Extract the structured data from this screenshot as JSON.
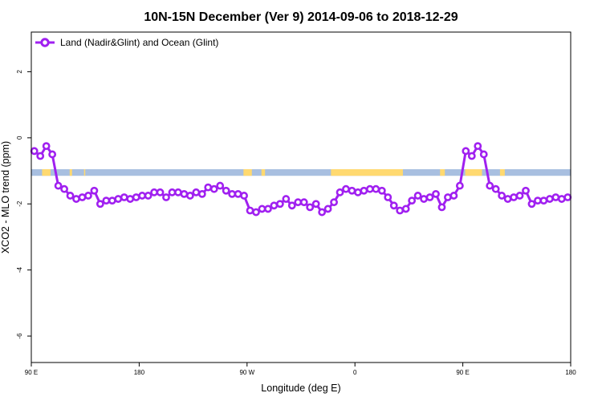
{
  "chart_data": {
    "type": "line",
    "title": "10N-15N December (Ver 9)   2014-09-06 to 2018-12-29",
    "xlabel": "Longitude (deg E)",
    "ylabel": "XCO2 - MLO trend (ppm)",
    "xlim": [
      90,
      540
    ],
    "ylim": [
      -6.8,
      3.2
    ],
    "x_ticks": [
      {
        "value": 90,
        "label": "90 E"
      },
      {
        "value": 180,
        "label": "180"
      },
      {
        "value": 270,
        "label": "90 W"
      },
      {
        "value": 360,
        "label": "0"
      },
      {
        "value": 450,
        "label": "90 E"
      },
      {
        "value": 540,
        "label": "180"
      }
    ],
    "y_ticks": [
      {
        "value": 2,
        "label": "2"
      },
      {
        "value": 0,
        "label": "0"
      },
      {
        "value": -2,
        "label": "-2"
      },
      {
        "value": -4,
        "label": "-4"
      },
      {
        "value": -6,
        "label": "-6"
      }
    ],
    "grid": false,
    "legend_position": "top-left",
    "series": [
      {
        "name": "Land (Nadir&Glint) and Ocean (Glint)",
        "color": "#a020f0",
        "marker": "open-circle",
        "x": [
          92.5,
          97.5,
          102.5,
          107.5,
          112.5,
          117.5,
          122.5,
          127.5,
          132.5,
          137.5,
          142.5,
          147.5,
          152.5,
          157.5,
          162.5,
          167.5,
          172.5,
          177.5,
          182.5,
          187.5,
          192.5,
          197.5,
          202.5,
          207.5,
          212.5,
          217.5,
          222.5,
          227.5,
          232.5,
          237.5,
          242.5,
          247.5,
          252.5,
          257.5,
          262.5,
          267.5,
          272.5,
          277.5,
          282.5,
          287.5,
          292.5,
          297.5,
          302.5,
          307.5,
          312.5,
          317.5,
          322.5,
          327.5,
          332.5,
          337.5,
          342.5,
          347.5,
          352.5,
          357.5,
          362.5,
          367.5,
          372.5,
          377.5,
          382.5,
          387.5,
          392.5,
          397.5,
          402.5,
          407.5,
          412.5,
          417.5,
          422.5,
          427.5,
          432.5,
          437.5,
          442.5,
          447.5,
          452.5,
          457.5,
          462.5,
          467.5,
          472.5,
          477.5,
          482.5,
          487.5,
          492.5,
          497.5,
          502.5,
          507.5,
          512.5,
          517.5,
          522.5,
          527.5,
          532.5,
          537.5
        ],
        "values": [
          -0.4,
          -0.55,
          -0.25,
          -0.5,
          -1.45,
          -1.55,
          -1.75,
          -1.85,
          -1.8,
          -1.75,
          -1.6,
          -2.0,
          -1.9,
          -1.9,
          -1.85,
          -1.8,
          -1.85,
          -1.8,
          -1.75,
          -1.75,
          -1.65,
          -1.65,
          -1.8,
          -1.65,
          -1.65,
          -1.7,
          -1.75,
          -1.65,
          -1.7,
          -1.5,
          -1.55,
          -1.45,
          -1.6,
          -1.7,
          -1.7,
          -1.75,
          -2.2,
          -2.25,
          -2.15,
          -2.15,
          -2.05,
          -2.0,
          -1.85,
          -2.05,
          -1.95,
          -1.95,
          -2.1,
          -2.0,
          -2.25,
          -2.15,
          -1.95,
          -1.65,
          -1.55,
          -1.6,
          -1.65,
          -1.6,
          -1.55,
          -1.55,
          -1.6,
          -1.8,
          -2.05,
          -2.2,
          -2.15,
          -1.9,
          -1.75,
          -1.85,
          -1.8,
          -1.7,
          -2.1,
          -1.8,
          -1.75,
          -1.45,
          -0.4,
          -0.55,
          -0.25,
          -0.5,
          -1.45,
          -1.55,
          -1.75,
          -1.85,
          -1.8,
          -1.75,
          -1.6,
          -2.0,
          -1.9,
          -1.9,
          -1.85,
          -1.8,
          -1.85,
          -1.8
        ]
      }
    ],
    "land_ocean_strip": {
      "y_range": [
        -1.15,
        -0.95
      ],
      "ocean_color": "#a8bfe0",
      "land_color": "#ffd970",
      "land_x_ranges": [
        [
          99,
          106
        ],
        [
          122,
          124
        ],
        [
          134,
          135
        ],
        [
          267,
          274
        ],
        [
          282,
          285
        ],
        [
          340,
          400
        ],
        [
          431,
          435
        ],
        [
          452,
          466
        ],
        [
          481,
          485
        ]
      ]
    }
  }
}
